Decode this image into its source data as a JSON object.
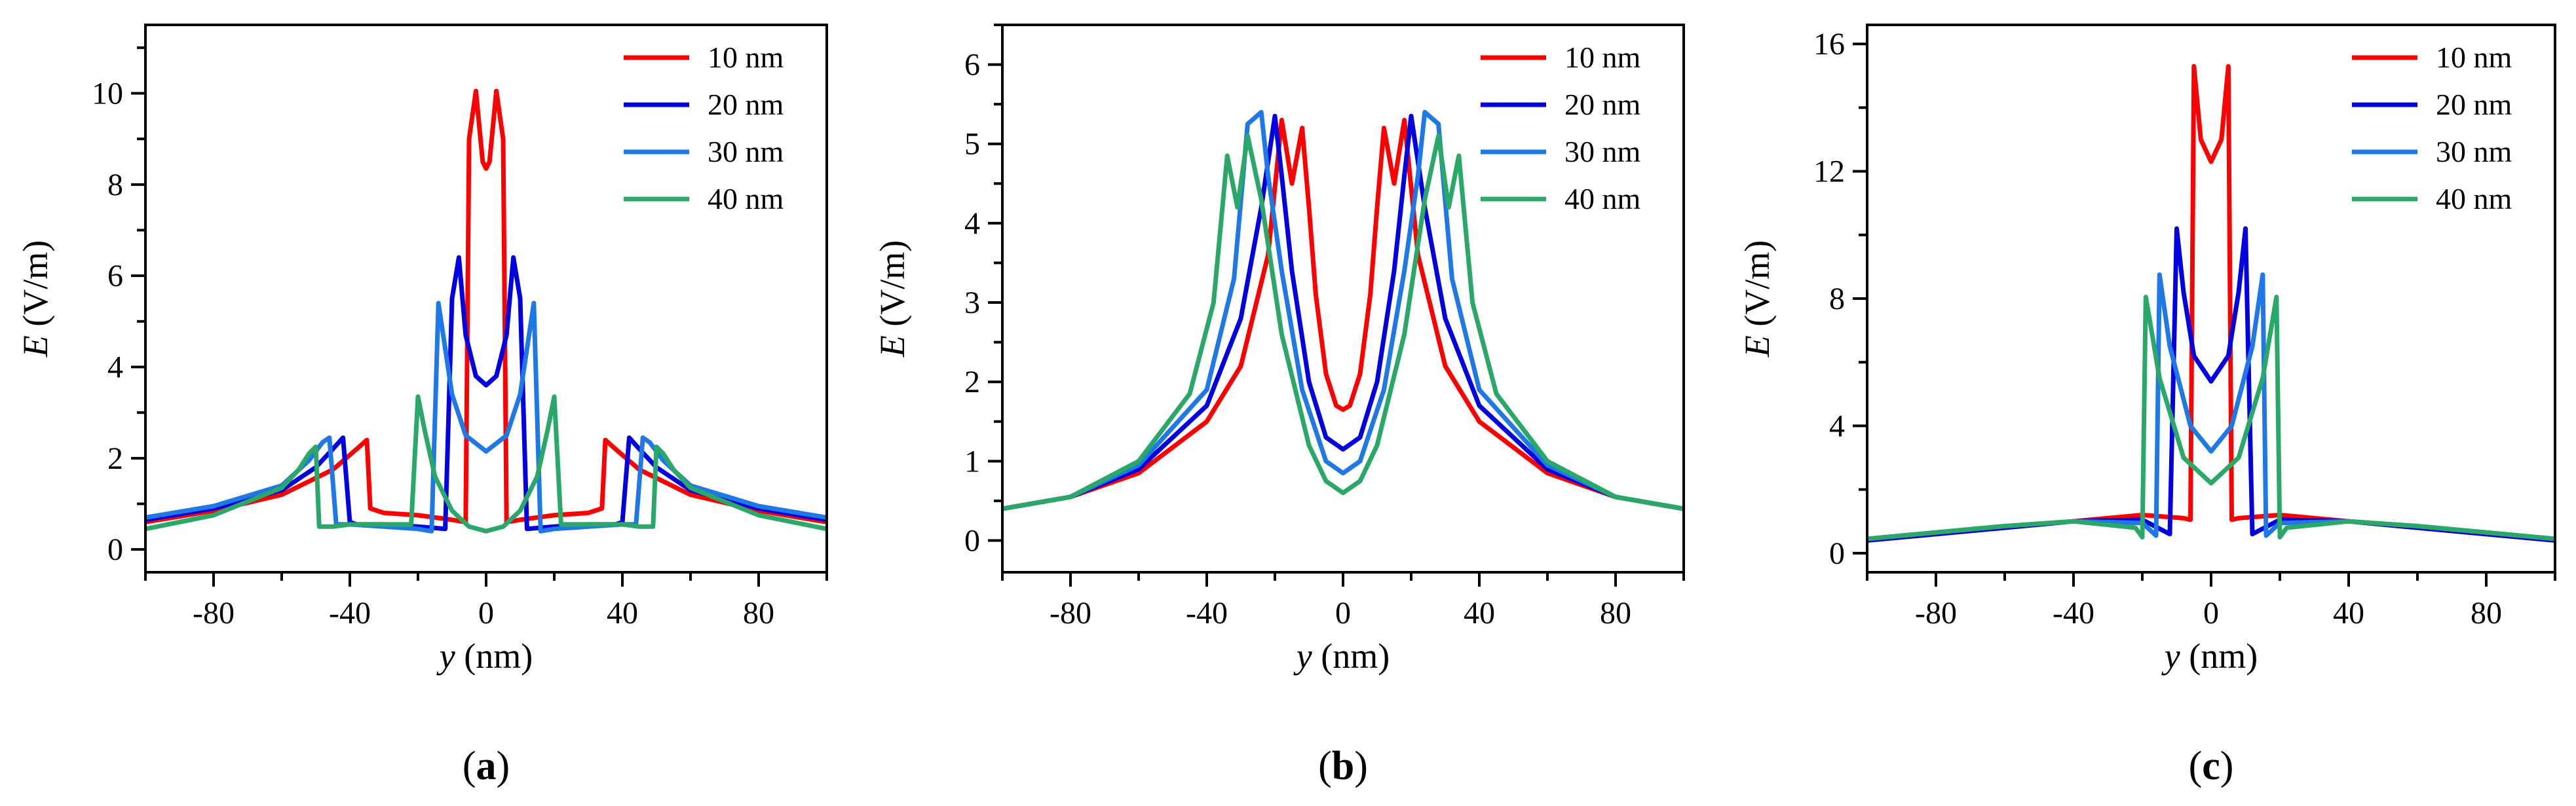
{
  "series_colors": {
    "10 nm": "#ff0000",
    "20 nm": "#0000e0",
    "30 nm": "#1e78e6",
    "40 nm": "#2aa868"
  },
  "chart_data": [
    {
      "type": "line",
      "panel_label": "(a)",
      "xlabel": "y (nm)",
      "ylabel": "E (V/m)",
      "xlim": [
        -100,
        100
      ],
      "ylim": [
        -0.5,
        11.5
      ],
      "xticks": [
        -80,
        -40,
        0,
        40,
        80
      ],
      "yticks": [
        0,
        2,
        4,
        6,
        8,
        10
      ],
      "legend_position": "top-right",
      "series": [
        {
          "name": "10 nm",
          "x": [
            -100,
            -80,
            -60,
            -45,
            -38,
            -35,
            -34,
            -30,
            -20,
            -10,
            -6,
            -5,
            -3,
            -1,
            0,
            1,
            3,
            5,
            6,
            10,
            20,
            30,
            34,
            35,
            38,
            45,
            60,
            80,
            100
          ],
          "y": [
            0.6,
            0.85,
            1.2,
            1.75,
            2.2,
            2.4,
            0.9,
            0.8,
            0.75,
            0.65,
            0.6,
            9.0,
            10.05,
            8.5,
            8.35,
            8.5,
            10.05,
            9.0,
            0.6,
            0.65,
            0.75,
            0.8,
            0.9,
            2.4,
            2.2,
            1.75,
            1.2,
            0.85,
            0.6
          ]
        },
        {
          "name": "20 nm",
          "x": [
            -100,
            -80,
            -60,
            -50,
            -45,
            -42,
            -40,
            -38,
            -30,
            -20,
            -12,
            -10,
            -8,
            -6,
            -3,
            0,
            3,
            6,
            8,
            10,
            12,
            20,
            30,
            38,
            40,
            42,
            45,
            50,
            60,
            80,
            100
          ],
          "y": [
            0.65,
            0.9,
            1.3,
            1.8,
            2.2,
            2.45,
            0.6,
            0.55,
            0.55,
            0.5,
            0.45,
            5.5,
            6.4,
            4.7,
            3.8,
            3.6,
            3.8,
            4.7,
            6.4,
            5.5,
            0.45,
            0.5,
            0.55,
            0.55,
            0.6,
            2.45,
            2.2,
            1.8,
            1.3,
            0.9,
            0.65
          ]
        },
        {
          "name": "30 nm",
          "x": [
            -100,
            -80,
            -60,
            -52,
            -48,
            -46,
            -44,
            -40,
            -30,
            -20,
            -16,
            -14,
            -12,
            -10,
            -6,
            0,
            6,
            10,
            12,
            14,
            16,
            20,
            30,
            40,
            44,
            46,
            48,
            52,
            60,
            80,
            100
          ],
          "y": [
            0.7,
            0.95,
            1.4,
            1.95,
            2.35,
            2.45,
            0.55,
            0.55,
            0.5,
            0.45,
            0.4,
            5.4,
            4.4,
            3.4,
            2.5,
            2.15,
            2.5,
            3.4,
            4.4,
            5.4,
            0.4,
            0.45,
            0.5,
            0.55,
            0.55,
            2.45,
            2.35,
            1.95,
            1.4,
            0.95,
            0.7
          ]
        },
        {
          "name": "40 nm",
          "x": [
            -100,
            -80,
            -60,
            -55,
            -52,
            -50,
            -49,
            -45,
            -40,
            -30,
            -22,
            -20,
            -18,
            -15,
            -10,
            -5,
            0,
            5,
            10,
            15,
            18,
            20,
            22,
            30,
            40,
            45,
            49,
            50,
            52,
            55,
            60,
            80,
            100
          ],
          "y": [
            0.45,
            0.75,
            1.35,
            1.75,
            2.1,
            2.25,
            0.5,
            0.5,
            0.55,
            0.55,
            0.55,
            3.35,
            2.6,
            1.6,
            0.85,
            0.5,
            0.4,
            0.5,
            0.85,
            1.6,
            2.6,
            3.35,
            0.55,
            0.55,
            0.55,
            0.5,
            0.5,
            2.25,
            2.1,
            1.75,
            1.35,
            0.75,
            0.45
          ]
        }
      ]
    },
    {
      "type": "line",
      "panel_label": "(b)",
      "xlabel": "y (nm)",
      "ylabel": "E (V/m)",
      "xlim": [
        -100,
        100
      ],
      "ylim": [
        -0.4,
        6.5
      ],
      "xticks": [
        -80,
        -40,
        0,
        40,
        80
      ],
      "yticks": [
        0,
        1,
        2,
        3,
        4,
        5,
        6
      ],
      "legend_position": "top-right",
      "series": [
        {
          "name": "10 nm",
          "x": [
            -100,
            -80,
            -60,
            -40,
            -30,
            -22,
            -18,
            -15,
            -12,
            -10,
            -8,
            -5,
            -2,
            0,
            2,
            5,
            8,
            10,
            12,
            15,
            18,
            22,
            30,
            40,
            60,
            80,
            100
          ],
          "y": [
            0.4,
            0.55,
            0.85,
            1.5,
            2.2,
            3.6,
            5.3,
            4.5,
            5.2,
            4.2,
            3.1,
            2.1,
            1.7,
            1.65,
            1.7,
            2.1,
            3.1,
            4.2,
            5.2,
            4.5,
            5.3,
            3.6,
            2.2,
            1.5,
            0.85,
            0.55,
            0.4
          ]
        },
        {
          "name": "20 nm",
          "x": [
            -100,
            -80,
            -60,
            -40,
            -30,
            -24,
            -20,
            -18,
            -15,
            -10,
            -5,
            0,
            5,
            10,
            15,
            18,
            20,
            24,
            30,
            40,
            60,
            80,
            100
          ],
          "y": [
            0.4,
            0.55,
            0.9,
            1.7,
            2.8,
            4.2,
            5.35,
            4.6,
            3.4,
            2.0,
            1.3,
            1.15,
            1.3,
            2.0,
            3.4,
            4.6,
            5.35,
            4.2,
            2.8,
            1.7,
            0.9,
            0.55,
            0.4
          ]
        },
        {
          "name": "30 nm",
          "x": [
            -100,
            -80,
            -60,
            -40,
            -32,
            -28,
            -24,
            -22,
            -18,
            -12,
            -5,
            0,
            5,
            12,
            18,
            22,
            24,
            28,
            32,
            40,
            60,
            80,
            100
          ],
          "y": [
            0.4,
            0.55,
            0.95,
            1.9,
            3.3,
            5.25,
            5.4,
            4.6,
            3.4,
            1.9,
            1.0,
            0.85,
            1.0,
            1.9,
            3.4,
            4.6,
            5.4,
            5.25,
            3.3,
            1.9,
            0.95,
            0.55,
            0.4
          ]
        },
        {
          "name": "40 nm",
          "x": [
            -100,
            -80,
            -60,
            -45,
            -38,
            -34,
            -31,
            -28,
            -24,
            -18,
            -10,
            -5,
            0,
            5,
            10,
            18,
            24,
            28,
            31,
            34,
            38,
            45,
            60,
            80,
            100
          ],
          "y": [
            0.4,
            0.55,
            1.0,
            1.85,
            3.0,
            4.85,
            4.2,
            5.1,
            4.3,
            2.6,
            1.2,
            0.75,
            0.6,
            0.75,
            1.2,
            2.6,
            4.3,
            5.1,
            4.2,
            4.85,
            3.0,
            1.85,
            1.0,
            0.55,
            0.4
          ]
        }
      ]
    },
    {
      "type": "line",
      "panel_label": "(c)",
      "xlabel": "y (nm)",
      "ylabel": "E (V/m)",
      "xlim": [
        -100,
        100
      ],
      "ylim": [
        -0.6,
        16.6
      ],
      "xticks": [
        -80,
        -40,
        0,
        40,
        80
      ],
      "yticks": [
        0,
        4,
        8,
        12,
        16
      ],
      "legend_position": "top-right",
      "series": [
        {
          "name": "10 nm",
          "x": [
            -100,
            -60,
            -40,
            -20,
            -8,
            -6,
            -5,
            -3,
            0,
            3,
            5,
            6,
            8,
            20,
            40,
            60,
            100
          ],
          "y": [
            0.4,
            0.8,
            1.0,
            1.2,
            1.1,
            1.05,
            15.3,
            13.0,
            12.3,
            13.0,
            15.3,
            1.05,
            1.1,
            1.2,
            1.0,
            0.8,
            0.4
          ]
        },
        {
          "name": "20 nm",
          "x": [
            -100,
            -60,
            -40,
            -20,
            -12,
            -10,
            -8,
            -5,
            0,
            5,
            8,
            10,
            12,
            20,
            40,
            60,
            100
          ],
          "y": [
            0.4,
            0.8,
            1.0,
            1.05,
            0.6,
            10.2,
            8.2,
            6.2,
            5.4,
            6.2,
            8.2,
            10.2,
            0.6,
            1.05,
            1.0,
            0.8,
            0.4
          ]
        },
        {
          "name": "30 nm",
          "x": [
            -100,
            -60,
            -40,
            -20,
            -16,
            -15,
            -12,
            -6,
            0,
            6,
            12,
            15,
            16,
            20,
            40,
            60,
            100
          ],
          "y": [
            0.45,
            0.85,
            1.0,
            0.95,
            0.55,
            8.75,
            6.5,
            4.0,
            3.2,
            4.0,
            6.5,
            8.75,
            0.55,
            0.95,
            1.0,
            0.85,
            0.45
          ]
        },
        {
          "name": "40 nm",
          "x": [
            -100,
            -60,
            -40,
            -22,
            -20,
            -19,
            -15,
            -8,
            0,
            8,
            15,
            19,
            20,
            22,
            40,
            60,
            100
          ],
          "y": [
            0.45,
            0.85,
            1.0,
            0.8,
            0.5,
            8.05,
            5.5,
            3.0,
            2.2,
            3.0,
            5.5,
            8.05,
            0.5,
            0.8,
            1.0,
            0.85,
            0.45
          ]
        }
      ]
    }
  ]
}
